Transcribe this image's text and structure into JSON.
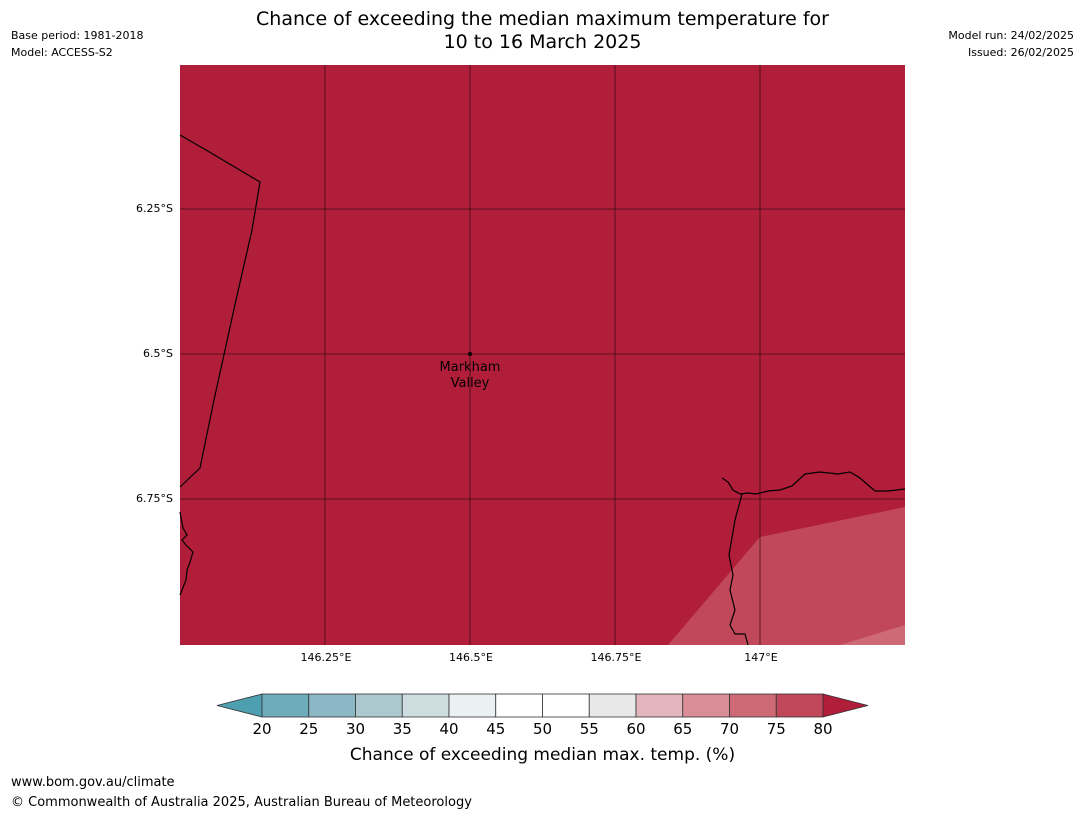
{
  "header": {
    "base_period": "Base period: 1981-2018",
    "model": "Model: ACCESS-S2",
    "model_run": "Model run: 24/02/2025",
    "issued": "Issued: 26/02/2025",
    "title_line1": "Chance of exceeding the median maximum temperature for",
    "title_line2": "10 to 16 March 2025"
  },
  "map": {
    "background_color": "#b11e3a",
    "lat_labels": [
      "6.25°S",
      "6.5°S",
      "6.75°S"
    ],
    "lon_labels": [
      "146.25°E",
      "146.5°E",
      "146.75°E",
      "147°E"
    ],
    "place": {
      "name_line1": "Markham",
      "name_line2": "Valley"
    }
  },
  "colorbar": {
    "ticks": [
      "20",
      "25",
      "30",
      "35",
      "40",
      "45",
      "50",
      "55",
      "60",
      "65",
      "70",
      "75",
      "80"
    ],
    "colors": [
      "#4ea0b0",
      "#6eacbc",
      "#8cb8c6",
      "#aac8ce",
      "#cddcdf",
      "#eaf1f2",
      "#ffffff",
      "#ffffff",
      "#e8e8e8",
      "#e2b6bc",
      "#d98d97",
      "#cd6a76",
      "#c0485a",
      "#b11e3a"
    ],
    "label": "Chance of exceeding median max. temp. (%)"
  },
  "footer": {
    "url": "www.bom.gov.au/climate",
    "copyright": "© Commonwealth of Australia 2025, Australian Bureau of Meteorology"
  }
}
